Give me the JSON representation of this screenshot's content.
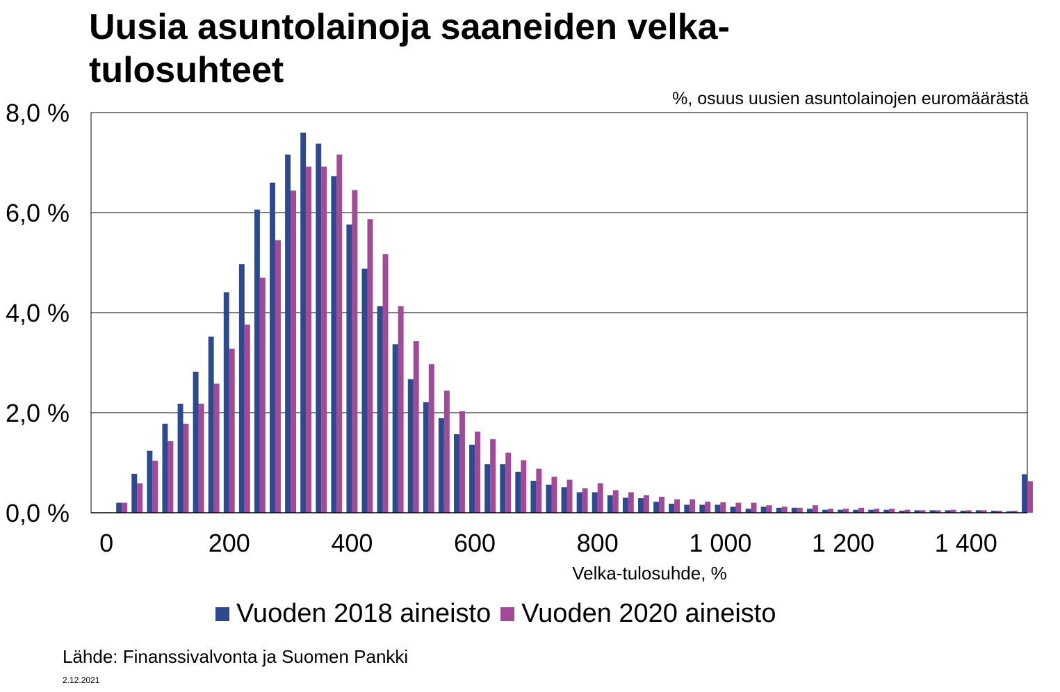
{
  "chart_data": {
    "type": "bar",
    "title_lines": [
      "Uusia asuntolainoja saaneiden velka-",
      "tulosuhteet"
    ],
    "subtitle": "%, osuus uusien asuntolainojen euromäärästä",
    "xlabel": "Velka-tulosuhde, %",
    "ylabel": "",
    "x_tick_labels": [
      "0",
      "200",
      "400",
      "600",
      "800",
      "1 000",
      "1 200",
      "1 400"
    ],
    "x_ticks": [
      0,
      200,
      400,
      600,
      800,
      1000,
      1200,
      1400
    ],
    "y_tick_labels": [
      "0,0 %",
      "2,0 %",
      "4,0 %",
      "6,0 %",
      "8,0 %"
    ],
    "y_ticks": [
      0,
      2,
      4,
      6,
      8
    ],
    "xlim": [
      -25,
      1500
    ],
    "ylim": [
      0,
      8
    ],
    "bin_width": 25,
    "x": [
      25,
      50,
      75,
      100,
      125,
      150,
      175,
      200,
      225,
      250,
      275,
      300,
      325,
      350,
      375,
      400,
      425,
      450,
      475,
      500,
      525,
      550,
      575,
      600,
      625,
      650,
      675,
      700,
      725,
      750,
      775,
      800,
      825,
      850,
      875,
      900,
      925,
      950,
      975,
      1000,
      1025,
      1050,
      1075,
      1100,
      1125,
      1150,
      1175,
      1200,
      1225,
      1250,
      1275,
      1300,
      1325,
      1350,
      1375,
      1400,
      1425,
      1450,
      1475,
      1500
    ],
    "series": [
      {
        "name": "Vuoden 2018 aineisto",
        "color": "#2e4a8c",
        "values": [
          0.2,
          0.78,
          1.24,
          1.78,
          2.18,
          2.82,
          3.52,
          4.41,
          4.97,
          6.06,
          6.6,
          7.16,
          7.6,
          7.38,
          6.73,
          5.76,
          4.88,
          4.13,
          3.37,
          2.67,
          2.21,
          1.89,
          1.57,
          1.36,
          0.97,
          0.97,
          0.82,
          0.64,
          0.56,
          0.51,
          0.41,
          0.41,
          0.35,
          0.3,
          0.29,
          0.22,
          0.18,
          0.16,
          0.16,
          0.16,
          0.12,
          0.08,
          0.12,
          0.1,
          0.1,
          0.08,
          0.06,
          0.06,
          0.06,
          0.06,
          0.06,
          0.04,
          0.05,
          0.05,
          0.05,
          0.04,
          0.05,
          0.04,
          0.03,
          0.77
        ]
      },
      {
        "name": "Vuoden 2020 aineisto",
        "color": "#a04a98",
        "values": [
          0.2,
          0.59,
          1.04,
          1.43,
          1.78,
          2.18,
          2.58,
          3.28,
          3.76,
          4.7,
          5.45,
          6.44,
          6.92,
          6.92,
          7.16,
          6.45,
          5.87,
          5.17,
          4.13,
          3.43,
          2.97,
          2.44,
          2.03,
          1.62,
          1.47,
          1.2,
          1.05,
          0.88,
          0.72,
          0.66,
          0.49,
          0.59,
          0.45,
          0.41,
          0.35,
          0.32,
          0.27,
          0.27,
          0.22,
          0.21,
          0.2,
          0.2,
          0.15,
          0.12,
          0.1,
          0.15,
          0.08,
          0.08,
          0.1,
          0.08,
          0.08,
          0.06,
          0.05,
          0.05,
          0.06,
          0.05,
          0.05,
          0.04,
          0.04,
          0.63
        ]
      }
    ],
    "grid": "horizontal",
    "legend_position": "bottom"
  },
  "footer": {
    "source": "Lähde: Finanssivalvonta  ja Suomen Pankki",
    "date": "2.12.2021"
  }
}
